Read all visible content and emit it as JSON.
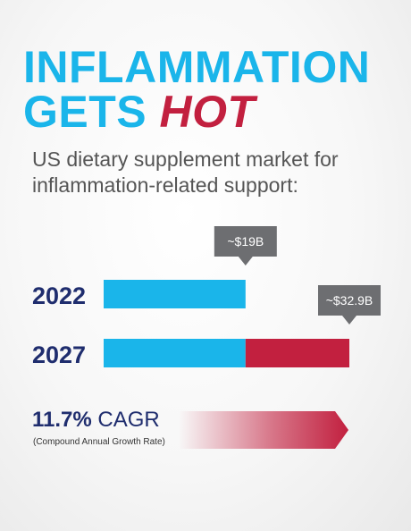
{
  "title_line1": "INFLAMMATION",
  "title_gets": "GETS",
  "title_hot": "HOT",
  "subtitle": "US dietary supplement market for inflammation-related support:",
  "cagr": {
    "value": "11.7%",
    "label": "CAGR",
    "sub": "(Compound Annual Growth Rate)"
  },
  "colors": {
    "blue": "#1ab5ea",
    "red": "#c2203f",
    "navy": "#1f2d6e",
    "tag": "#6d6e71"
  },
  "chart_data": {
    "type": "bar",
    "orientation": "horizontal",
    "categories": [
      "2022",
      "2027"
    ],
    "values": [
      19,
      32.9
    ],
    "value_labels": [
      "~$19B",
      "~$32.9B"
    ],
    "segments": [
      {
        "values": [
          19,
          19
        ],
        "color": "#1ab5ea"
      },
      {
        "values": [
          0,
          13.9
        ],
        "color": "#c2203f"
      }
    ],
    "xlim": [
      0,
      32.9
    ],
    "axes_visible": false,
    "grid": false
  }
}
